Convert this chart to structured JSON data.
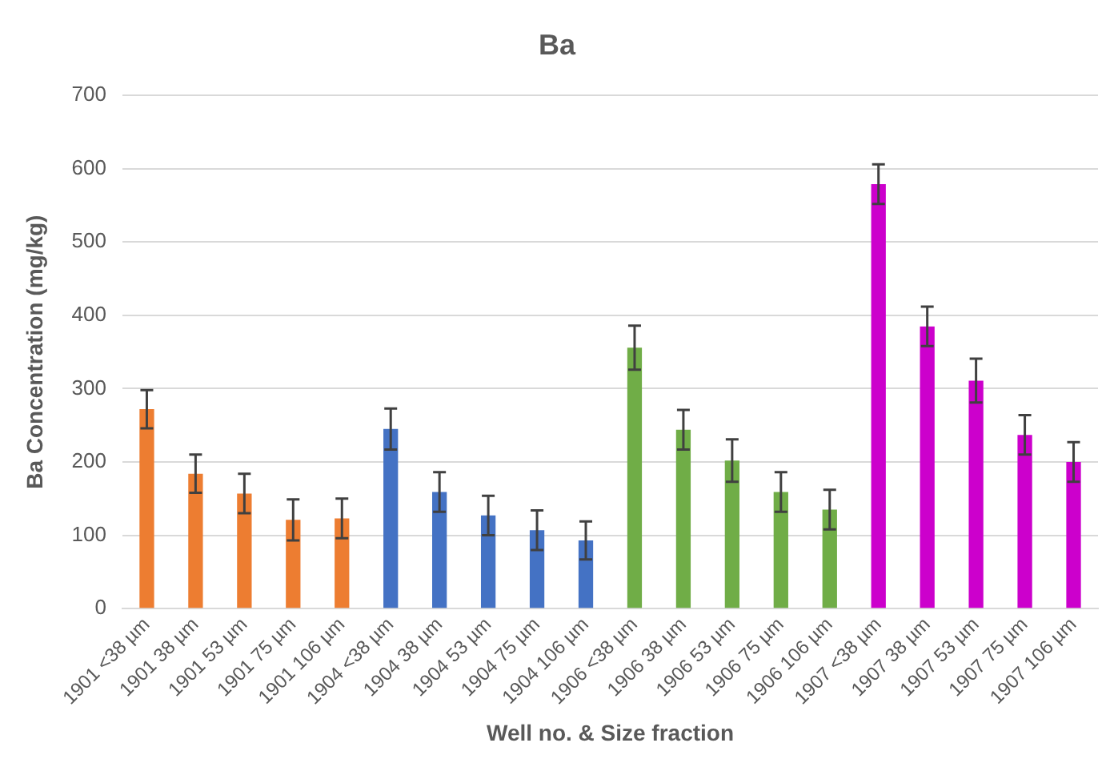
{
  "chart_data": {
    "type": "bar",
    "title": "Ba",
    "xlabel": "Well no. & Size fraction",
    "ylabel": "Ba Concentration (mg/kg)",
    "categories": [
      "1901 <38 µm",
      "1901 38 µm",
      "1901 53 µm",
      "1901 75 µm",
      "1901 106 µm",
      "1904 <38 µm",
      "1904 38 µm",
      "1904 53 µm",
      "1904 75 µm",
      "1904 106 µm",
      "1906 <38 µm",
      "1906 38 µm",
      "1906 53 µm",
      "1906 75 µm",
      "1906 106 µm",
      "1907 <38 µm",
      "1907 38 µm",
      "1907 53 µm",
      "1907 75 µm",
      "1907 106 µm"
    ],
    "values": [
      272,
      184,
      157,
      121,
      123,
      245,
      159,
      127,
      107,
      93,
      356,
      244,
      202,
      159,
      135,
      579,
      385,
      311,
      237,
      200
    ],
    "errors": [
      26,
      26,
      27,
      28,
      27,
      28,
      27,
      27,
      27,
      26,
      30,
      27,
      29,
      27,
      27,
      27,
      27,
      30,
      27,
      27
    ],
    "colors": [
      "#ed7d31",
      "#ed7d31",
      "#ed7d31",
      "#ed7d31",
      "#ed7d31",
      "#4472c4",
      "#4472c4",
      "#4472c4",
      "#4472c4",
      "#4472c4",
      "#70ad47",
      "#70ad47",
      "#70ad47",
      "#70ad47",
      "#70ad47",
      "#cc00cc",
      "#cc00cc",
      "#cc00cc",
      "#cc00cc",
      "#cc00cc"
    ],
    "ylim": [
      0,
      700
    ],
    "yticks": [
      0,
      100,
      200,
      300,
      400,
      500,
      600,
      700
    ],
    "grid": "y",
    "legend": false
  }
}
